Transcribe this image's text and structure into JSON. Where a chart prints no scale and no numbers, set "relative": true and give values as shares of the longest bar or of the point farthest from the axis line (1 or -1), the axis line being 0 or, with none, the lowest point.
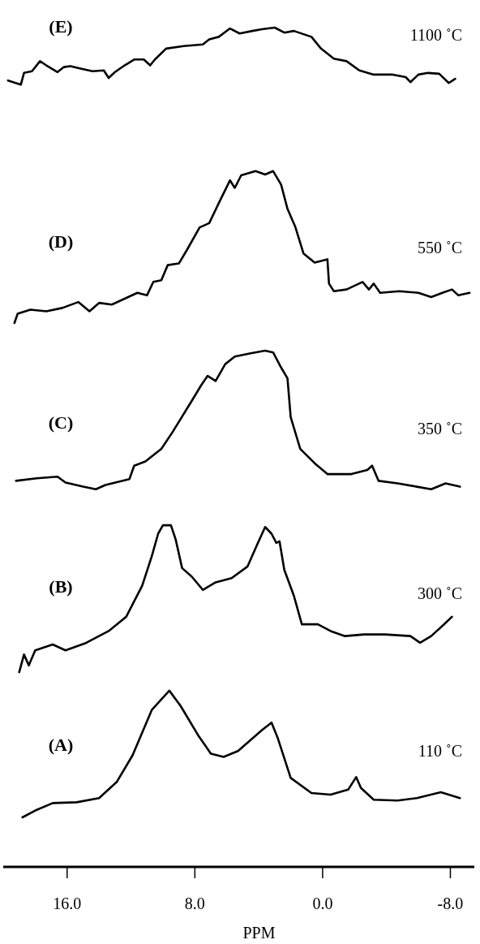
{
  "chart_data": {
    "type": "line",
    "relative": true,
    "xlim": [
      20,
      -9.5
    ],
    "xlabel": "PPM",
    "xticks": [
      {
        "value": 16,
        "label": "16.0"
      },
      {
        "value": 8,
        "label": "8.0"
      },
      {
        "value": 0,
        "label": "0.0"
      },
      {
        "value": -8,
        "label": "-8.0"
      }
    ],
    "annotations": [
      "1100 ˚C",
      "550 ˚C",
      "350 ˚C",
      "300 ˚C",
      "110 ˚C"
    ],
    "series": [
      {
        "name": "(E)",
        "color": "#000000",
        "x": [
          19.7,
          18.9,
          18.7,
          18.2,
          17.7,
          17.3,
          16.6,
          16.2,
          15.8,
          15.1,
          14.4,
          13.7,
          13.4,
          13.0,
          12.4,
          11.8,
          11.2,
          10.8,
          10.5,
          9.8,
          8.7,
          7.5,
          7.1,
          6.5,
          5.8,
          5.2,
          4.4,
          3.8,
          3.0,
          2.4,
          1.8,
          0.7,
          0.1,
          -0.7,
          -1.5,
          -2.3,
          -3.2,
          -4.4,
          -5.2,
          -5.5,
          -6.0,
          -6.6,
          -7.3,
          -7.9,
          -8.3
        ],
        "values": [
          0.937,
          0.932,
          0.946,
          0.948,
          0.96,
          0.955,
          0.947,
          0.953,
          0.954,
          0.951,
          0.948,
          0.949,
          0.94,
          0.947,
          0.955,
          0.962,
          0.962,
          0.955,
          0.962,
          0.975,
          0.978,
          0.98,
          0.986,
          0.989,
          0.999,
          0.993,
          0.996,
          0.998,
          1,
          0.994,
          0.996,
          0.989,
          0.975,
          0.963,
          0.96,
          0.949,
          0.944,
          0.944,
          0.941,
          0.935,
          0.944,
          0.946,
          0.945,
          0.934,
          0.939
        ]
      },
      {
        "name": "(D)",
        "color": "#000000",
        "x": [
          19.3,
          19.1,
          18.3,
          17.3,
          16.3,
          15.3,
          14.6,
          14.0,
          13.2,
          12.4,
          11.6,
          11.0,
          10.6,
          10.1,
          9.7,
          9.0,
          8.5,
          7.7,
          7.1,
          6.5,
          5.8,
          5.5,
          5.1,
          4.2,
          3.6,
          3.1,
          2.6,
          2.2,
          1.7,
          1.2,
          0.5,
          -0.3,
          -0.4,
          -0.7,
          -1.5,
          -2.5,
          -2.9,
          -3.2,
          -3.6,
          -4.8,
          -6.0,
          -6.8,
          -7.5,
          -8.1,
          -8.5,
          -9.2
        ],
        "values": [
          0.648,
          0.659,
          0.664,
          0.662,
          0.666,
          0.673,
          0.662,
          0.672,
          0.67,
          0.677,
          0.684,
          0.681,
          0.697,
          0.699,
          0.717,
          0.719,
          0.735,
          0.762,
          0.767,
          0.791,
          0.818,
          0.809,
          0.824,
          0.829,
          0.825,
          0.829,
          0.813,
          0.784,
          0.762,
          0.731,
          0.72,
          0.724,
          0.695,
          0.686,
          0.688,
          0.697,
          0.688,
          0.695,
          0.684,
          0.686,
          0.684,
          0.679,
          0.684,
          0.688,
          0.681,
          0.684
        ]
      },
      {
        "name": "(C)",
        "color": "#000000",
        "x": [
          19.2,
          17.9,
          16.6,
          16.1,
          15.0,
          14.2,
          13.6,
          12.1,
          11.8,
          11.1,
          10.1,
          9.4,
          8.3,
          7.6,
          7.2,
          6.7,
          6.1,
          5.5,
          4.5,
          3.6,
          3.1,
          2.6,
          2.2,
          2.0,
          1.4,
          0.5,
          -0.3,
          -1.8,
          -2.8,
          -3.1,
          -3.5,
          -4.7,
          -5.9,
          -6.8,
          -7.7,
          -8.6
        ],
        "values": [
          0.46,
          0.463,
          0.465,
          0.458,
          0.453,
          0.45,
          0.455,
          0.462,
          0.478,
          0.483,
          0.498,
          0.518,
          0.552,
          0.574,
          0.585,
          0.579,
          0.599,
          0.608,
          0.612,
          0.615,
          0.613,
          0.595,
          0.582,
          0.536,
          0.498,
          0.481,
          0.468,
          0.468,
          0.473,
          0.478,
          0.46,
          0.457,
          0.453,
          0.45,
          0.457,
          0.453
        ]
      },
      {
        "name": "(B)",
        "color": "#000000",
        "x": [
          19.0,
          18.7,
          18.4,
          18.0,
          16.9,
          16.1,
          14.8,
          13.4,
          12.3,
          11.3,
          10.7,
          10.3,
          10.0,
          9.5,
          9.2,
          8.8,
          8.2,
          7.5,
          6.7,
          5.7,
          4.7,
          4.1,
          3.6,
          3.2,
          2.9,
          2.7,
          2.4,
          1.8,
          1.3,
          0.3,
          -0.5,
          -1.4,
          -2.6,
          -3.9,
          -5.5,
          -6.1,
          -6.8,
          -7.6,
          -8.1
        ],
        "values": [
          0.232,
          0.253,
          0.24,
          0.258,
          0.265,
          0.258,
          0.267,
          0.281,
          0.298,
          0.335,
          0.37,
          0.397,
          0.407,
          0.407,
          0.39,
          0.356,
          0.346,
          0.33,
          0.339,
          0.344,
          0.358,
          0.384,
          0.405,
          0.397,
          0.386,
          0.388,
          0.354,
          0.323,
          0.289,
          0.289,
          0.281,
          0.275,
          0.277,
          0.277,
          0.275,
          0.267,
          0.275,
          0.289,
          0.298
        ]
      },
      {
        "name": "(A)",
        "color": "#000000",
        "x": [
          18.8,
          17.9,
          16.9,
          15.4,
          14.0,
          12.9,
          11.9,
          10.7,
          9.6,
          8.9,
          7.8,
          7.0,
          6.2,
          5.3,
          3.8,
          3.2,
          2.8,
          2.0,
          0.7,
          -0.5,
          -1.6,
          -2.1,
          -2.4,
          -3.2,
          -4.7,
          -5.9,
          -7.4,
          -8.6
        ],
        "values": [
          0.059,
          0.068,
          0.076,
          0.077,
          0.082,
          0.101,
          0.133,
          0.187,
          0.21,
          0.192,
          0.157,
          0.135,
          0.131,
          0.138,
          0.163,
          0.172,
          0.153,
          0.106,
          0.088,
          0.086,
          0.092,
          0.107,
          0.094,
          0.08,
          0.079,
          0.082,
          0.089,
          0.082
        ]
      }
    ]
  }
}
